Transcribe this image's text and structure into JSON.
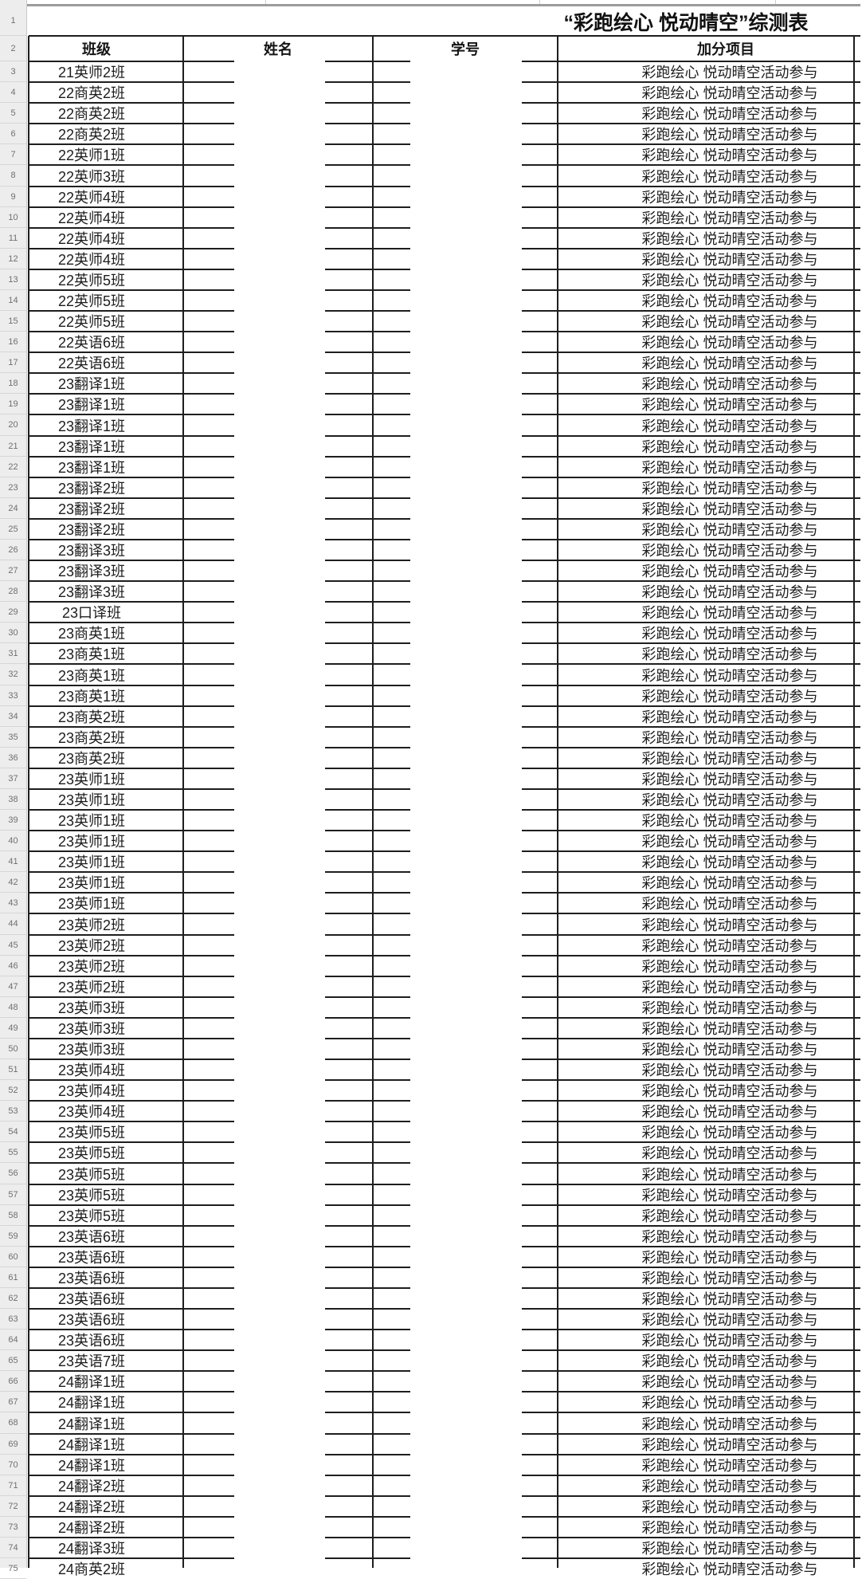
{
  "sheet": {
    "title": "“彩跑绘心 悦动晴空”综测表",
    "columns": {
      "class": "班级",
      "name": "姓名",
      "student_id": "学号",
      "bonus": "加分项目"
    },
    "bonus_value": "彩跑绘心 悦动晴空活动参与",
    "gutter_top_rows": [
      "1",
      "2"
    ],
    "rows": [
      {
        "n": "3",
        "class": "21英师2班"
      },
      {
        "n": "4",
        "class": "22商英2班"
      },
      {
        "n": "5",
        "class": "22商英2班"
      },
      {
        "n": "6",
        "class": "22商英2班"
      },
      {
        "n": "7",
        "class": "22英师1班"
      },
      {
        "n": "8",
        "class": "22英师3班"
      },
      {
        "n": "9",
        "class": "22英师4班"
      },
      {
        "n": "10",
        "class": "22英师4班"
      },
      {
        "n": "11",
        "class": "22英师4班"
      },
      {
        "n": "12",
        "class": "22英师4班"
      },
      {
        "n": "13",
        "class": "22英师5班"
      },
      {
        "n": "14",
        "class": "22英师5班"
      },
      {
        "n": "15",
        "class": "22英师5班"
      },
      {
        "n": "16",
        "class": "22英语6班"
      },
      {
        "n": "17",
        "class": "22英语6班"
      },
      {
        "n": "18",
        "class": "23翻译1班"
      },
      {
        "n": "19",
        "class": "23翻译1班"
      },
      {
        "n": "20",
        "class": "23翻译1班"
      },
      {
        "n": "21",
        "class": "23翻译1班"
      },
      {
        "n": "22",
        "class": "23翻译1班"
      },
      {
        "n": "23",
        "class": "23翻译2班"
      },
      {
        "n": "24",
        "class": "23翻译2班"
      },
      {
        "n": "25",
        "class": "23翻译2班"
      },
      {
        "n": "26",
        "class": "23翻译3班"
      },
      {
        "n": "27",
        "class": "23翻译3班"
      },
      {
        "n": "28",
        "class": "23翻译3班"
      },
      {
        "n": "29",
        "class": "23口译班"
      },
      {
        "n": "30",
        "class": "23商英1班"
      },
      {
        "n": "31",
        "class": "23商英1班"
      },
      {
        "n": "32",
        "class": "23商英1班"
      },
      {
        "n": "33",
        "class": "23商英1班"
      },
      {
        "n": "34",
        "class": "23商英2班"
      },
      {
        "n": "35",
        "class": "23商英2班"
      },
      {
        "n": "36",
        "class": "23商英2班"
      },
      {
        "n": "37",
        "class": "23英师1班"
      },
      {
        "n": "38",
        "class": "23英师1班"
      },
      {
        "n": "39",
        "class": "23英师1班"
      },
      {
        "n": "40",
        "class": "23英师1班"
      },
      {
        "n": "41",
        "class": "23英师1班"
      },
      {
        "n": "42",
        "class": "23英师1班"
      },
      {
        "n": "43",
        "class": "23英师1班"
      },
      {
        "n": "44",
        "class": "23英师2班"
      },
      {
        "n": "45",
        "class": "23英师2班"
      },
      {
        "n": "46",
        "class": "23英师2班"
      },
      {
        "n": "47",
        "class": "23英师2班"
      },
      {
        "n": "48",
        "class": "23英师3班"
      },
      {
        "n": "49",
        "class": "23英师3班"
      },
      {
        "n": "50",
        "class": "23英师3班"
      },
      {
        "n": "51",
        "class": "23英师4班"
      },
      {
        "n": "52",
        "class": "23英师4班"
      },
      {
        "n": "53",
        "class": "23英师4班"
      },
      {
        "n": "54",
        "class": "23英师5班"
      },
      {
        "n": "55",
        "class": "23英师5班"
      },
      {
        "n": "56",
        "class": "23英师5班"
      },
      {
        "n": "57",
        "class": "23英师5班"
      },
      {
        "n": "58",
        "class": "23英师5班"
      },
      {
        "n": "59",
        "class": "23英语6班"
      },
      {
        "n": "60",
        "class": "23英语6班"
      },
      {
        "n": "61",
        "class": "23英语6班"
      },
      {
        "n": "62",
        "class": "23英语6班"
      },
      {
        "n": "63",
        "class": "23英语6班"
      },
      {
        "n": "64",
        "class": "23英语6班"
      },
      {
        "n": "65",
        "class": "23英语7班"
      },
      {
        "n": "66",
        "class": "24翻译1班"
      },
      {
        "n": "67",
        "class": "24翻译1班"
      },
      {
        "n": "68",
        "class": "24翻译1班"
      },
      {
        "n": "69",
        "class": "24翻译1班"
      },
      {
        "n": "70",
        "class": "24翻译1班"
      },
      {
        "n": "71",
        "class": "24翻译2班"
      },
      {
        "n": "72",
        "class": "24翻译2班"
      },
      {
        "n": "73",
        "class": "24翻译2班"
      },
      {
        "n": "74",
        "class": "24翻译3班"
      },
      {
        "n": "75",
        "class": "24商英2班"
      }
    ],
    "colors": {
      "grid_line": "#1e1e1e",
      "gutter_bg": "#ededed",
      "gutter_text": "#6f6f6f",
      "top_grey_line": "#9c9c9c",
      "text": "#1d1d1d"
    }
  }
}
